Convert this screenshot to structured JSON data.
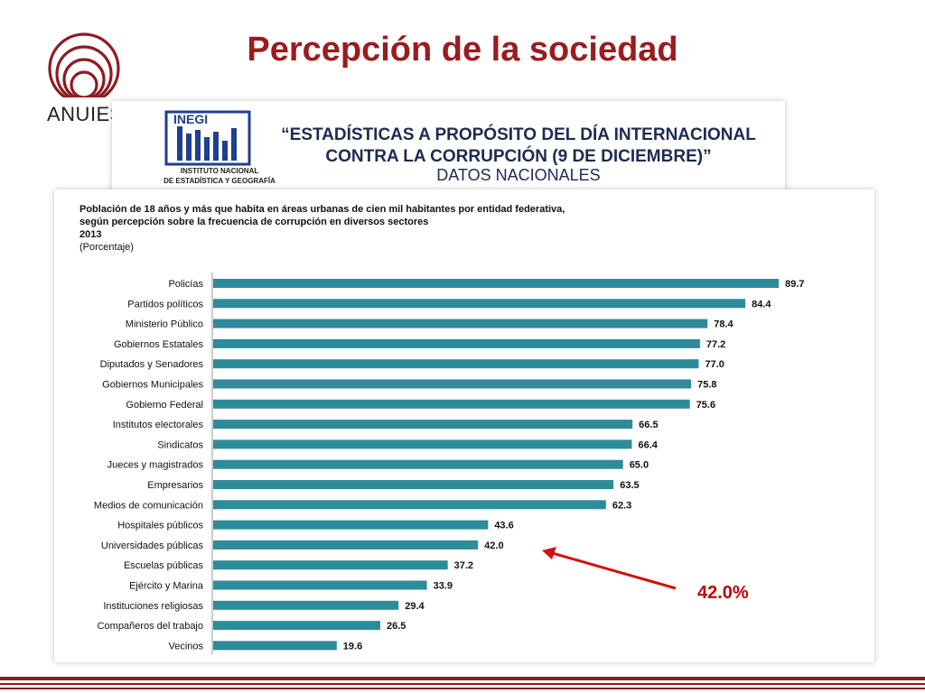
{
  "slide": {
    "title": "Percepción de la sociedad",
    "logo_text": "ANUIES",
    "accent_color": "#9b1b1e"
  },
  "source_header": {
    "logo_text": "INEGI",
    "caption_line1": "INSTITUTO NACIONAL",
    "caption_line2": "DE ESTADÍSTICA Y GEOGRAFÍA",
    "title_line1": "“ESTADÍSTICAS A PROPÓSITO DEL DÍA INTERNACIONAL",
    "title_line2": "CONTRA LA CORRUPCIÓN (9 DE DICIEMBRE)”",
    "subtitle": "DATOS NACIONALES"
  },
  "chart_data": {
    "type": "bar",
    "orientation": "horizontal",
    "title_lines": [
      "Población de 18 años y más que habita en áreas urbanas de cien mil habitantes por entidad federativa,",
      "según percepción sobre la frecuencia de corrupción en diversos sectores",
      "2013"
    ],
    "unit": "(Porcentaje)",
    "categories": [
      "Policías",
      "Partidos políticos",
      "Ministerio Público",
      "Gobiernos Estatales",
      "Diputados y Senadores",
      "Gobiernos Municipales",
      "Gobierno Federal",
      "Institutos electorales",
      "Sindicatos",
      "Jueces y magistrados",
      "Empresarios",
      "Medios de comunicación",
      "Hospitales públicos",
      "Universidades públicas",
      "Escuelas públicas",
      "Ejército y Marina",
      "Instituciones religiosas",
      "Compañeros del trabajo",
      "Vecinos"
    ],
    "values": [
      89.7,
      84.4,
      78.4,
      77.2,
      77.0,
      75.8,
      75.6,
      66.5,
      66.4,
      65.0,
      63.5,
      62.3,
      43.6,
      42.0,
      37.2,
      33.9,
      29.4,
      26.5,
      19.6
    ],
    "value_labels": [
      "89.7",
      "84.4",
      "78.4",
      "77.2",
      "77.0",
      "75.8",
      "75.6",
      "66.5",
      "66.4",
      "65.0",
      "63.5",
      "62.3",
      "43.6",
      "42.0",
      "37.2",
      "33.9",
      "29.4",
      "26.5",
      "19.6"
    ],
    "xlim": [
      0,
      100
    ],
    "bar_color": "#2e8b9a",
    "highlight_index": 13
  },
  "annotation": {
    "text": "42.0%",
    "color": "#c00000"
  }
}
